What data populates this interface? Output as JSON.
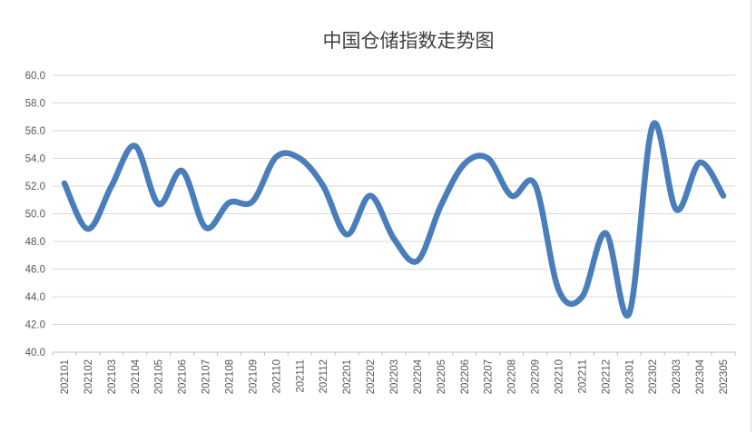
{
  "chart_data": {
    "type": "line",
    "title": "中国仓储指数走势图",
    "categories": [
      "202101",
      "202102",
      "202103",
      "202104",
      "202105",
      "202106",
      "202107",
      "202108",
      "202109",
      "202110",
      "202111",
      "202112",
      "202201",
      "202202",
      "202203",
      "202204",
      "202205",
      "202206",
      "202207",
      "202208",
      "202209",
      "202210",
      "202211",
      "202212",
      "202301",
      "202302",
      "202303",
      "202304",
      "202305"
    ],
    "values": [
      52.2,
      48.9,
      52.0,
      54.9,
      50.7,
      53.1,
      49.0,
      50.8,
      50.9,
      54.1,
      54.0,
      52.0,
      48.5,
      51.3,
      48.2,
      46.6,
      50.6,
      53.6,
      54.0,
      51.3,
      52.1,
      44.5,
      44.0,
      48.6,
      42.8,
      56.4,
      50.3,
      53.7,
      51.3
    ],
    "ylim": [
      40.0,
      60.0
    ],
    "ytick_step": 2.0,
    "ytick_labels": [
      "40.0",
      "42.0",
      "44.0",
      "46.0",
      "48.0",
      "50.0",
      "52.0",
      "54.0",
      "56.0",
      "58.0",
      "60.0"
    ],
    "xlabel": "",
    "ylabel": "",
    "grid": true,
    "legend_position": "none",
    "smooth": true,
    "x_label_rotation": 90,
    "line_color": "#4a7ebb",
    "line_width": 6.5,
    "grid_color": "#d9d9d9",
    "axis_color": "#bfbfbf",
    "label_color": "#595959",
    "title_color": "#404040",
    "background": "#ffffff"
  }
}
